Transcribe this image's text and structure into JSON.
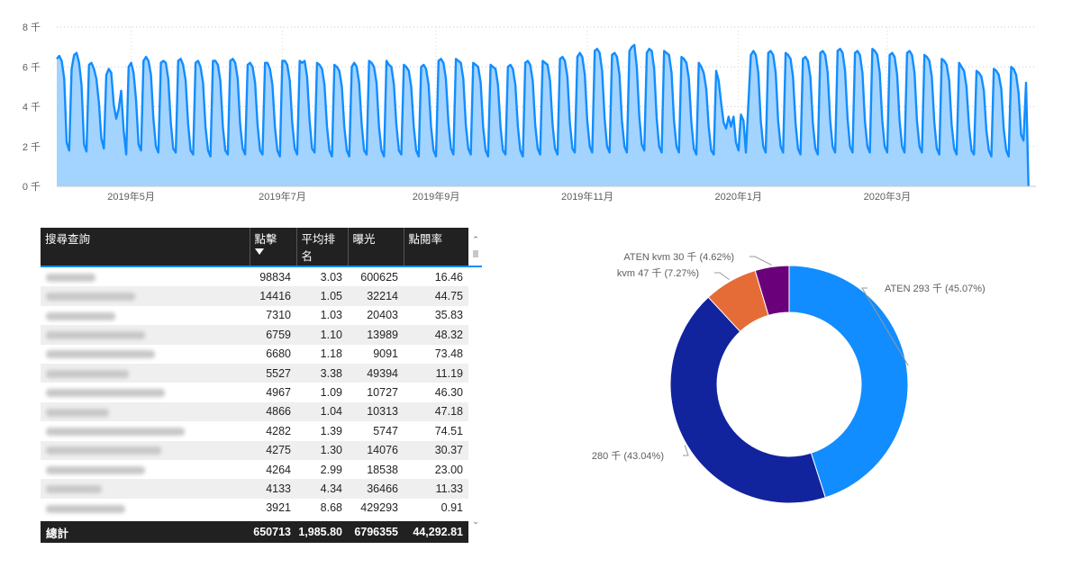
{
  "chart_data": [
    {
      "type": "area",
      "title": "",
      "xlabel": "",
      "ylabel": "",
      "ylim": [
        0,
        8000
      ],
      "y_ticks": [
        "0 千",
        "2 千",
        "4 千",
        "6 千",
        "8 千"
      ],
      "y_tick_values": [
        0,
        2000,
        4000,
        6000,
        8000
      ],
      "x_ticks": [
        "2019年5月",
        "2019年7月",
        "2019年9月",
        "2019年11月",
        "2020年1月",
        "2020年3月"
      ],
      "x_tick_dates": [
        "2019-05-01",
        "2019-07-01",
        "2019-09-01",
        "2019-11-01",
        "2020-01-01",
        "2020-03-01"
      ],
      "x_range": [
        "2019-04-01",
        "2020-04-30"
      ],
      "grid": true,
      "series_color": "#118dff",
      "fill_color": "#a3d3ff",
      "weekly_pattern": [
        {
          "week_start": "2019-04-01",
          "values": [
            6400,
            6550,
            6300,
            5400,
            2200,
            1800,
            5900
          ]
        },
        {
          "week_start": "2019-04-08",
          "values": [
            6600,
            6700,
            6200,
            5100,
            2100,
            1750,
            6100
          ]
        },
        {
          "week_start": "2019-04-15",
          "values": [
            6200,
            5900,
            5400,
            4200,
            2400,
            1900,
            5600
          ]
        },
        {
          "week_start": "2019-04-22",
          "values": [
            5900,
            5700,
            4100,
            3400,
            3900,
            4800,
            2800
          ]
        },
        {
          "week_start": "2019-04-29",
          "values": [
            1600,
            6000,
            6200,
            5700,
            4300,
            2100,
            1800
          ]
        },
        {
          "week_start": "2019-05-06",
          "values": [
            6300,
            6500,
            6300,
            5600,
            3400,
            2000,
            1700
          ]
        },
        {
          "week_start": "2019-05-13",
          "values": [
            6200,
            6300,
            6200,
            5400,
            3200,
            1900,
            1700
          ]
        },
        {
          "week_start": "2019-05-20",
          "values": [
            6300,
            6400,
            6100,
            5300,
            3100,
            1800,
            1600
          ]
        },
        {
          "week_start": "2019-05-27",
          "values": [
            6200,
            6300,
            6000,
            5200,
            3000,
            1800,
            1500
          ]
        },
        {
          "week_start": "2019-06-03",
          "values": [
            6300,
            6300,
            6100,
            5300,
            3000,
            1800,
            1600
          ]
        },
        {
          "week_start": "2019-06-10",
          "values": [
            6300,
            6400,
            6200,
            5400,
            3100,
            1900,
            1600
          ]
        },
        {
          "week_start": "2019-06-17",
          "values": [
            6100,
            6200,
            6000,
            5200,
            3100,
            1800,
            1600
          ]
        },
        {
          "week_start": "2019-06-24",
          "values": [
            6200,
            6200,
            5900,
            5100,
            3000,
            1800,
            1500
          ]
        },
        {
          "week_start": "2019-07-01",
          "values": [
            6300,
            6300,
            6100,
            5300,
            3200,
            1900,
            1600
          ]
        },
        {
          "week_start": "2019-07-08",
          "values": [
            6300,
            6200,
            6300,
            5500,
            3300,
            1900,
            1700
          ]
        },
        {
          "week_start": "2019-07-15",
          "values": [
            6200,
            6100,
            5900,
            5100,
            3000,
            1800,
            1500
          ]
        },
        {
          "week_start": "2019-07-22",
          "values": [
            6100,
            6000,
            5800,
            5000,
            3000,
            1800,
            1500
          ]
        },
        {
          "week_start": "2019-07-29",
          "values": [
            6000,
            6200,
            6000,
            5200,
            3100,
            1800,
            1600
          ]
        },
        {
          "week_start": "2019-08-05",
          "values": [
            6300,
            6200,
            6000,
            5200,
            3000,
            1800,
            1500
          ]
        },
        {
          "week_start": "2019-08-12",
          "values": [
            6300,
            6100,
            6000,
            5100,
            3100,
            1800,
            1600
          ]
        },
        {
          "week_start": "2019-08-19",
          "values": [
            6100,
            6000,
            5800,
            5000,
            3000,
            1800,
            1500
          ]
        },
        {
          "week_start": "2019-08-26",
          "values": [
            6000,
            6100,
            5900,
            5100,
            3000,
            1800,
            1500
          ]
        },
        {
          "week_start": "2019-09-02",
          "values": [
            6300,
            6400,
            6200,
            5400,
            3200,
            1900,
            1600
          ]
        },
        {
          "week_start": "2019-09-09",
          "values": [
            6400,
            6300,
            6200,
            5400,
            3100,
            1900,
            1600
          ]
        },
        {
          "week_start": "2019-09-16",
          "values": [
            6200,
            6100,
            6000,
            5200,
            3000,
            1800,
            1500
          ]
        },
        {
          "week_start": "2019-09-23",
          "values": [
            6100,
            6000,
            5900,
            5100,
            3000,
            1800,
            1600
          ]
        },
        {
          "week_start": "2019-09-30",
          "values": [
            6000,
            6100,
            5900,
            5100,
            3000,
            1800,
            1500
          ]
        },
        {
          "week_start": "2019-10-07",
          "values": [
            6200,
            6300,
            6100,
            5300,
            3100,
            1900,
            1600
          ]
        },
        {
          "week_start": "2019-10-14",
          "values": [
            6300,
            6200,
            6100,
            5300,
            3100,
            1900,
            1600
          ]
        },
        {
          "week_start": "2019-10-21",
          "values": [
            6400,
            6500,
            6300,
            5500,
            3200,
            1900,
            1700
          ]
        },
        {
          "week_start": "2019-10-28",
          "values": [
            6500,
            6700,
            6500,
            5600,
            3300,
            2000,
            1700
          ]
        },
        {
          "week_start": "2019-11-04",
          "values": [
            6800,
            6900,
            6700,
            5800,
            3400,
            2000,
            1700
          ]
        },
        {
          "week_start": "2019-11-11",
          "values": [
            6600,
            6700,
            6500,
            5600,
            3300,
            2000,
            1700
          ]
        },
        {
          "week_start": "2019-11-18",
          "values": [
            6800,
            7000,
            7100,
            6000,
            3500,
            2100,
            1800
          ]
        },
        {
          "week_start": "2019-11-25",
          "values": [
            6700,
            6900,
            6800,
            5900,
            3400,
            2000,
            1700
          ]
        },
        {
          "week_start": "2019-12-02",
          "values": [
            6800,
            6700,
            6600,
            5700,
            3300,
            2000,
            1700
          ]
        },
        {
          "week_start": "2019-12-09",
          "values": [
            6500,
            6400,
            6200,
            5400,
            3200,
            1900,
            1600
          ]
        },
        {
          "week_start": "2019-12-16",
          "values": [
            6200,
            6000,
            5700,
            4900,
            3000,
            1800,
            1600
          ]
        },
        {
          "week_start": "2019-12-23",
          "values": [
            5800,
            5300,
            4200,
            3200,
            2900,
            3500,
            3000
          ]
        },
        {
          "week_start": "2019-12-30",
          "values": [
            3500,
            2200,
            1800,
            3600,
            3300,
            1700,
            4200
          ]
        },
        {
          "week_start": "2020-01-06",
          "values": [
            6600,
            6800,
            6600,
            5700,
            3300,
            2000,
            1700
          ]
        },
        {
          "week_start": "2020-01-13",
          "values": [
            6700,
            6800,
            6600,
            5700,
            3300,
            2000,
            1700
          ]
        },
        {
          "week_start": "2020-01-20",
          "values": [
            6700,
            6600,
            6400,
            5500,
            3200,
            1900,
            1600
          ]
        },
        {
          "week_start": "2020-01-27",
          "values": [
            6400,
            6500,
            6300,
            5500,
            3200,
            1900,
            1600
          ]
        },
        {
          "week_start": "2020-02-03",
          "values": [
            6700,
            6800,
            6600,
            5700,
            3300,
            2000,
            1700
          ]
        },
        {
          "week_start": "2020-02-10",
          "values": [
            6800,
            6900,
            6700,
            5800,
            3400,
            2000,
            1700
          ]
        },
        {
          "week_start": "2020-02-17",
          "values": [
            6700,
            6800,
            6600,
            5700,
            3300,
            2000,
            1700
          ]
        },
        {
          "week_start": "2020-02-24",
          "values": [
            6900,
            6800,
            6600,
            5700,
            3300,
            2000,
            1700
          ]
        },
        {
          "week_start": "2020-03-02",
          "values": [
            6600,
            6700,
            6500,
            5600,
            3300,
            2000,
            1700
          ]
        },
        {
          "week_start": "2020-03-09",
          "values": [
            6700,
            6800,
            6600,
            5700,
            3300,
            2000,
            1700
          ]
        },
        {
          "week_start": "2020-03-16",
          "values": [
            6600,
            6500,
            6300,
            5500,
            3200,
            1900,
            1600
          ]
        },
        {
          "week_start": "2020-03-23",
          "values": [
            6400,
            6300,
            6100,
            5300,
            3100,
            1900,
            1600
          ]
        },
        {
          "week_start": "2020-03-30",
          "values": [
            6200,
            6000,
            5800,
            5000,
            3000,
            1800,
            1600
          ]
        },
        {
          "week_start": "2020-04-06",
          "values": [
            5800,
            5700,
            5500,
            4800,
            2800,
            1800,
            1500
          ]
        },
        {
          "week_start": "2020-04-13",
          "values": [
            5900,
            5800,
            5600,
            4900,
            2900,
            1800,
            1500
          ]
        },
        {
          "week_start": "2020-04-20",
          "values": [
            6000,
            5900,
            5600,
            4700,
            2600,
            2300,
            5200
          ]
        },
        {
          "week_start": "2020-04-27",
          "values": [
            0
          ]
        }
      ]
    },
    {
      "type": "table",
      "columns": [
        "搜尋查詢",
        "點擊",
        "平均排名",
        "曝光",
        "點閱率"
      ],
      "sort_column": "點擊",
      "rows": [
        {
          "query_blur": 0.25,
          "clicks": "98834",
          "avg_rank": "3.03",
          "impressions": "600625",
          "ctr": "16.46"
        },
        {
          "query_blur": 0.45,
          "clicks": "14416",
          "avg_rank": "1.05",
          "impressions": "32214",
          "ctr": "44.75"
        },
        {
          "query_blur": 0.35,
          "clicks": "7310",
          "avg_rank": "1.03",
          "impressions": "20403",
          "ctr": "35.83"
        },
        {
          "query_blur": 0.5,
          "clicks": "6759",
          "avg_rank": "1.10",
          "impressions": "13989",
          "ctr": "48.32"
        },
        {
          "query_blur": 0.55,
          "clicks": "6680",
          "avg_rank": "1.18",
          "impressions": "9091",
          "ctr": "73.48"
        },
        {
          "query_blur": 0.42,
          "clicks": "5527",
          "avg_rank": "3.38",
          "impressions": "49394",
          "ctr": "11.19"
        },
        {
          "query_blur": 0.6,
          "clicks": "4967",
          "avg_rank": "1.09",
          "impressions": "10727",
          "ctr": "46.30"
        },
        {
          "query_blur": 0.32,
          "clicks": "4866",
          "avg_rank": "1.04",
          "impressions": "10313",
          "ctr": "47.18"
        },
        {
          "query_blur": 0.7,
          "clicks": "4282",
          "avg_rank": "1.39",
          "impressions": "5747",
          "ctr": "74.51"
        },
        {
          "query_blur": 0.58,
          "clicks": "4275",
          "avg_rank": "1.30",
          "impressions": "14076",
          "ctr": "30.37"
        },
        {
          "query_blur": 0.5,
          "clicks": "4264",
          "avg_rank": "2.99",
          "impressions": "18538",
          "ctr": "23.00"
        },
        {
          "query_blur": 0.28,
          "clicks": "4133",
          "avg_rank": "4.34",
          "impressions": "36466",
          "ctr": "11.33"
        },
        {
          "query_blur": 0.4,
          "clicks": "3921",
          "avg_rank": "8.68",
          "impressions": "429293",
          "ctr": "0.91"
        }
      ],
      "total": {
        "label": "總計",
        "clicks": "650713",
        "avg_rank": "1,985.80",
        "impressions": "6796355",
        "ctr": "44,292.81"
      }
    },
    {
      "type": "pie",
      "donut": true,
      "slices": [
        {
          "label": "ATEN 293 千 (45.07%)",
          "value": 45.07,
          "color": "#118dff"
        },
        {
          "label": "280 千 (43.04%)",
          "value": 43.04,
          "color": "#12239e"
        },
        {
          "label": "kvm 47 千 (7.27%)",
          "value": 7.27,
          "color": "#e66c37"
        },
        {
          "label": "ATEN kvm 30 千 (4.62%)",
          "value": 4.62,
          "color": "#6b007b"
        }
      ]
    }
  ],
  "scrollbar": {
    "up_icon": "chevron-up-icon",
    "down_icon": "chevron-down-icon"
  }
}
